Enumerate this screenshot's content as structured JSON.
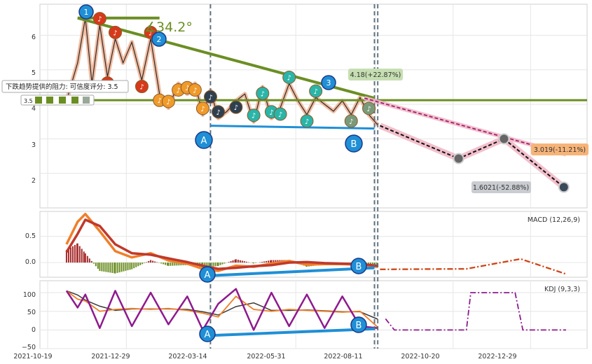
{
  "colors": {
    "plot_bg": "#ffffff",
    "grid": "#e6e6e6",
    "axis_text": "#333333",
    "resistance_green": "#6b8e23",
    "support_blue": "#1f8fd6",
    "forecast_pink": "#f2b8c6",
    "forecast_black": "#111111",
    "forecast_magenta": "#9a1f6e",
    "macd_orange": "#f07f2a",
    "macd_red": "#c0392b",
    "kdj_purple": "#8e1a8e",
    "hist_red": "#a52a2a",
    "hist_green": "#6b8e23",
    "vline": "#5a6b7a",
    "badge_dark_blue": "#1f6fb5",
    "note_red": "#d63a1a",
    "note_orange": "#f09a2a",
    "note_teal": "#2ab5a8",
    "note_dark": "#2f3f4f",
    "note_grey": "#7a9a7a"
  },
  "x_axis": {
    "ticks": [
      "2021-10-19",
      "2021-12-29",
      "2022-03-14",
      "2022-05-31",
      "2022-08-11",
      "2022-10-20",
      "2022-12-29"
    ]
  },
  "panels": {
    "price": {
      "y_ticks": [
        "6",
        "5",
        "4",
        "3",
        "2"
      ],
      "angle_label": "∡34.2°",
      "resistance_note": "下跌趋势提供的阻力: 可信度评分: 3.5",
      "rating_value": "3.5",
      "target_up": "4.18(+22.87%)",
      "target_mid": "3.019(-11.21%)",
      "target_low": "1.6021(-52.88%)",
      "wave_labels": [
        "1",
        "2",
        "3"
      ],
      "point_labels": [
        "A",
        "B"
      ]
    },
    "macd": {
      "label": "MACD (12,26,9)",
      "y_ticks": [
        "0.5",
        "0.0"
      ],
      "point_labels": [
        "A",
        "B"
      ]
    },
    "kdj": {
      "label": "KDJ (9,3,3)",
      "y_ticks": [
        "100",
        "50",
        "0",
        "−50"
      ],
      "point_labels": [
        "A",
        "B"
      ]
    }
  },
  "chart_data": [
    {
      "type": "line",
      "title": "",
      "x_type": "date",
      "ylim": [
        1.0,
        6.9
      ],
      "series": [
        {
          "x": [
            "2021-11-05",
            "2021-11-15",
            "2021-11-22",
            "2021-11-28",
            "2021-12-05",
            "2021-12-12",
            "2021-12-19",
            "2021-12-26",
            "2022-01-03",
            "2022-01-12",
            "2022-01-20",
            "2022-01-28",
            "2022-02-05",
            "2022-02-14",
            "2022-02-22",
            "2022-03-01",
            "2022-03-08",
            "2022-03-15",
            "2022-03-22",
            "2022-03-30",
            "2022-04-07",
            "2022-04-15",
            "2022-04-23",
            "2022-05-01",
            "2022-05-09",
            "2022-05-17",
            "2022-05-25",
            "2022-06-02",
            "2022-06-10",
            "2022-06-18",
            "2022-06-26",
            "2022-07-04",
            "2022-07-12",
            "2022-07-20",
            "2022-07-28",
            "2022-08-05",
            "2022-08-13"
          ],
          "values": [
            4.1,
            5.2,
            6.5,
            4.6,
            6.3,
            4.8,
            5.9,
            5.2,
            5.8,
            4.7,
            5.9,
            4.3,
            3.9,
            4.6,
            4.3,
            4.6,
            3.7,
            4.4,
            3.6,
            3.8,
            4.1,
            4.3,
            3.5,
            4.5,
            3.6,
            3.9,
            4.6,
            4.1,
            3.7,
            4.2,
            4.0,
            3.8,
            4.1,
            3.7,
            4.2,
            3.7,
            3.4
          ]
        }
      ],
      "forecast": [
        {
          "x": "2022-08-15",
          "value": 3.38
        },
        {
          "x": "2022-10-25",
          "value": 2.43
        },
        {
          "x": "2022-12-05",
          "value": 3.0
        },
        {
          "x": "2023-01-28",
          "value": 1.6
        }
      ],
      "upper_forecast": [
        {
          "x": "2022-08-01",
          "value": 4.18
        },
        {
          "x": "2023-01-30",
          "value": 2.55
        }
      ],
      "resistance_line": [
        {
          "x": "2021-11-15",
          "value": 6.5
        },
        {
          "x": "2022-08-10",
          "value": 4.18
        }
      ],
      "horizontal_level": 4.12,
      "top_flat_line": [
        {
          "x": "2021-11-15",
          "value": 6.5
        },
        {
          "x": "2022-01-28",
          "value": 6.5
        }
      ],
      "support_line": [
        {
          "x": "2022-03-15",
          "value": 3.38
        },
        {
          "x": "2022-08-10",
          "value": 3.3
        }
      ],
      "vertical_markers": [
        "2022-03-15",
        "2022-08-10",
        "2022-08-13"
      ]
    },
    {
      "type": "line",
      "title": "MACD (12,26,9)",
      "x_type": "date",
      "ylim": [
        -0.28,
        0.98
      ],
      "series": [
        {
          "name": "DIF",
          "x": [
            "2021-11-05",
            "2021-11-15",
            "2021-11-22",
            "2021-12-05",
            "2021-12-19",
            "2022-01-03",
            "2022-01-20",
            "2022-02-05",
            "2022-02-22",
            "2022-03-08",
            "2022-03-22",
            "2022-04-07",
            "2022-04-23",
            "2022-05-09",
            "2022-05-25",
            "2022-06-10",
            "2022-06-26",
            "2022-07-12",
            "2022-07-28",
            "2022-08-13"
          ],
          "values": [
            0.35,
            0.78,
            0.93,
            0.6,
            0.22,
            0.1,
            0.18,
            0.04,
            -0.02,
            -0.12,
            -0.16,
            -0.06,
            -0.08,
            -0.02,
            0.03,
            -0.04,
            -0.03,
            -0.03,
            -0.04,
            -0.08
          ]
        },
        {
          "name": "DEA",
          "x": [
            "2021-11-05",
            "2021-11-15",
            "2021-11-22",
            "2021-12-05",
            "2021-12-19",
            "2022-01-03",
            "2022-01-20",
            "2022-02-05",
            "2022-02-22",
            "2022-03-08",
            "2022-03-22",
            "2022-04-07",
            "2022-04-23",
            "2022-05-09",
            "2022-05-25",
            "2022-06-10",
            "2022-06-26",
            "2022-07-12",
            "2022-07-28",
            "2022-08-13"
          ],
          "values": [
            0.2,
            0.55,
            0.82,
            0.7,
            0.35,
            0.18,
            0.15,
            0.08,
            0.01,
            -0.06,
            -0.12,
            -0.1,
            -0.07,
            -0.05,
            0.0,
            0.01,
            -0.01,
            -0.02,
            -0.03,
            -0.06
          ]
        }
      ],
      "forecast": [
        {
          "x": "2022-08-15",
          "value": -0.13
        },
        {
          "x": "2022-11-01",
          "value": -0.12
        },
        {
          "x": "2022-12-20",
          "value": 0.07
        },
        {
          "x": "2023-01-30",
          "value": -0.22
        }
      ],
      "divergence_line": [
        {
          "x": "2022-03-15",
          "value": -0.25
        },
        {
          "x": "2022-08-10",
          "value": -0.1
        }
      ]
    },
    {
      "type": "line",
      "title": "KDJ (9,3,3)",
      "x_type": "date",
      "ylim": [
        -50,
        132
      ],
      "series": [
        {
          "name": "J",
          "x": [
            "2021-11-05",
            "2021-11-15",
            "2021-11-22",
            "2021-12-05",
            "2021-12-19",
            "2022-01-03",
            "2022-01-20",
            "2022-02-05",
            "2022-02-22",
            "2022-03-08",
            "2022-03-22",
            "2022-04-07",
            "2022-04-23",
            "2022-05-09",
            "2022-05-25",
            "2022-06-10",
            "2022-06-26",
            "2022-07-12",
            "2022-07-28",
            "2022-08-13"
          ],
          "values": [
            105,
            60,
            95,
            5,
            105,
            10,
            100,
            15,
            90,
            0,
            70,
            110,
            0,
            100,
            10,
            95,
            5,
            90,
            10,
            5
          ]
        }
      ],
      "forecast": [
        {
          "x": "2022-08-20",
          "value": 30
        },
        {
          "x": "2022-08-28",
          "value": 0
        },
        {
          "x": "2022-11-01",
          "value": 0
        },
        {
          "x": "2022-11-05",
          "value": 100
        },
        {
          "x": "2022-12-15",
          "value": 100
        },
        {
          "x": "2022-12-22",
          "value": 0
        },
        {
          "x": "2023-01-30",
          "value": 0
        }
      ],
      "divergence_line": [
        {
          "x": "2022-03-15",
          "value": -15
        },
        {
          "x": "2022-08-10",
          "value": 3
        }
      ]
    }
  ]
}
